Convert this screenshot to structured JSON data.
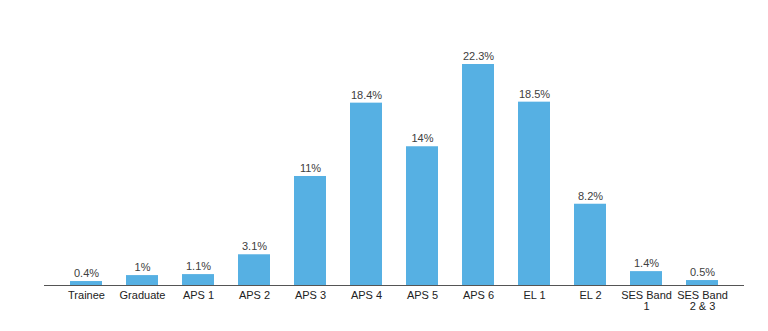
{
  "chart_data": {
    "type": "bar",
    "categories": [
      "Trainee",
      "Graduate",
      "APS 1",
      "APS 2",
      "APS 3",
      "APS 4",
      "APS 5",
      "APS 6",
      "EL 1",
      "EL 2",
      "SES Band 1",
      "SES Band 2 & 3"
    ],
    "values": [
      0.4,
      1,
      1.1,
      3.1,
      11,
      18.4,
      14,
      22.3,
      18.5,
      8.2,
      1.4,
      0.5
    ],
    "value_labels": [
      "0.4%",
      "1%",
      "1.1%",
      "3.1%",
      "11%",
      "18.4%",
      "14%",
      "22.3%",
      "18.5%",
      "8.2%",
      "1.4%",
      "0.5%"
    ],
    "color": "#56b0e3",
    "data_labels": true,
    "tick_labels": "x"
  }
}
